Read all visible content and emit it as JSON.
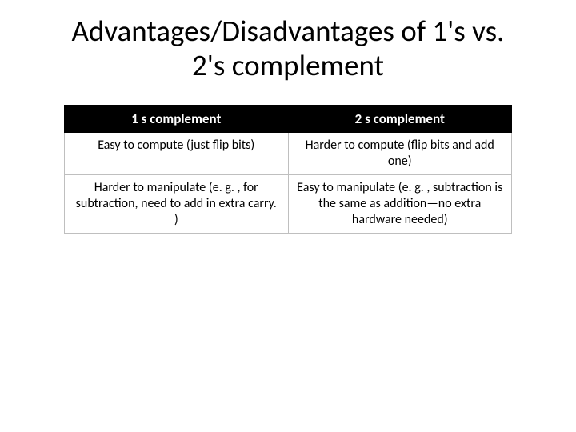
{
  "title": "Advantages/Disadvantages of 1's vs. 2's complement",
  "table": {
    "columns": [
      "1 s complement",
      "2 s complement"
    ],
    "rows": [
      [
        "Easy to compute (just flip bits)",
        "Harder to compute (flip bits and add one)"
      ],
      [
        "Harder to manipulate (e. g. , for subtraction, need to add in extra carry. )",
        "Easy to manipulate (e. g. , subtraction is the same as addition—no extra hardware needed)"
      ]
    ],
    "header_bg": "#000000",
    "header_fg": "#ffffff",
    "cell_bg": "#ffffff",
    "cell_fg": "#000000",
    "border_color": "#bfbfbf",
    "title_fontsize": 37,
    "header_fontsize": 17,
    "cell_fontsize": 16
  }
}
